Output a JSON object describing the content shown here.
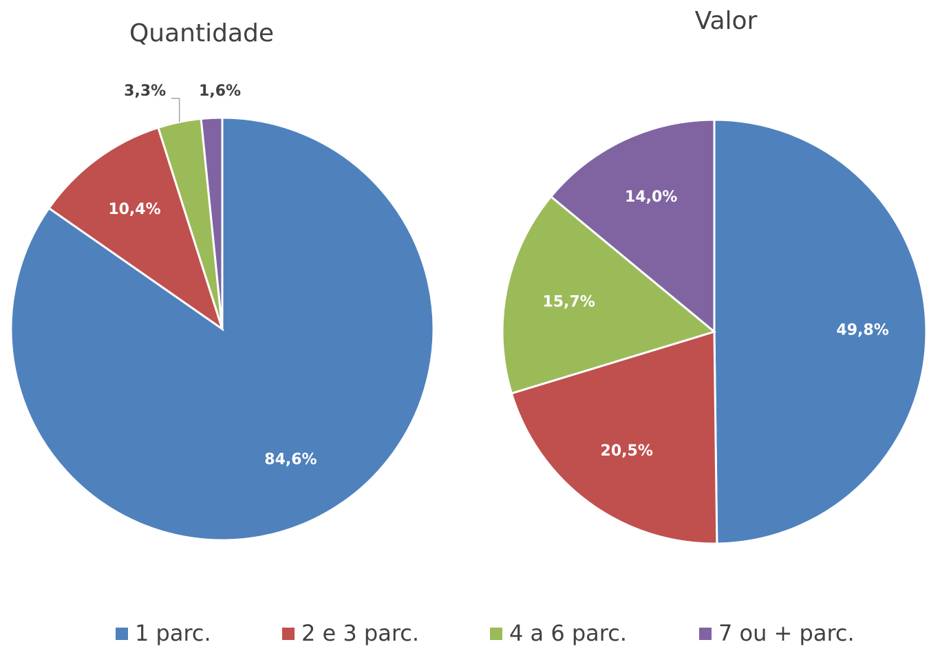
{
  "chart_data": [
    {
      "type": "pie",
      "title": "Quantidade",
      "categories": [
        "1 parc.",
        "2 e 3 parc.",
        "4 a 6 parc.",
        "7 ou + parc."
      ],
      "values": [
        84.6,
        10.4,
        3.3,
        1.6
      ],
      "value_labels": [
        "84,6%",
        "10,4%",
        "3,3%",
        "1,6%"
      ],
      "colors": [
        "#4f81bd",
        "#c0504d",
        "#9bbb59",
        "#8064a2"
      ],
      "legend": "bottom"
    },
    {
      "type": "pie",
      "title": "Valor",
      "categories": [
        "1 parc.",
        "2 e 3 parc.",
        "4 a 6 parc.",
        "7 ou + parc."
      ],
      "values": [
        49.8,
        20.5,
        15.7,
        14.0
      ],
      "value_labels": [
        "49,8%",
        "20,5%",
        "15,7%",
        "14,0%"
      ],
      "colors": [
        "#4f81bd",
        "#c0504d",
        "#9bbb59",
        "#8064a2"
      ],
      "legend": "bottom"
    }
  ]
}
